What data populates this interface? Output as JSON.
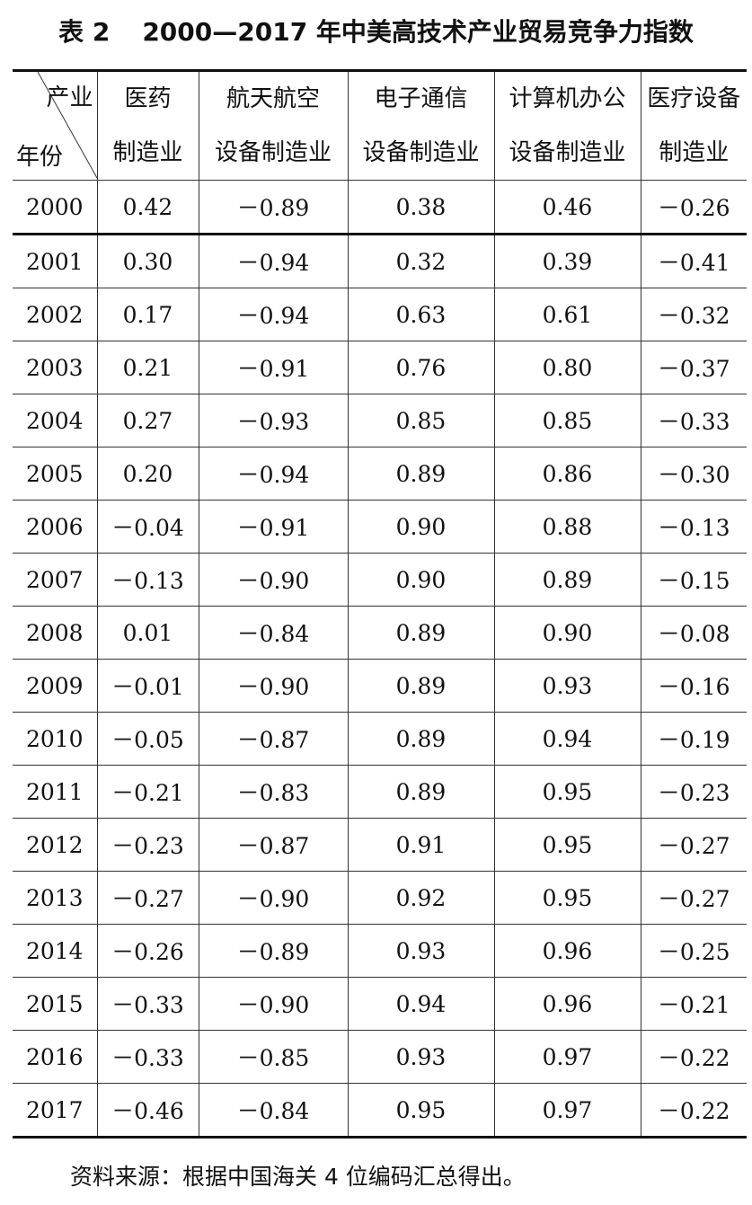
{
  "title": {
    "label": "表 2",
    "text": "2000—2017 年中美高技术产业贸易竞争力指数"
  },
  "table": {
    "corner": {
      "top": "产业",
      "bottom": "年份"
    },
    "columns": [
      [
        "医药",
        "制造业"
      ],
      [
        "航天航空",
        "设备制造业"
      ],
      [
        "电子通信",
        "设备制造业"
      ],
      [
        "计算机办公",
        "设备制造业"
      ],
      [
        "医疗设备",
        "制造业"
      ]
    ],
    "rows": [
      [
        "2000",
        "0.42",
        "－0.89",
        "0.38",
        "0.46",
        "－0.26"
      ],
      [
        "2001",
        "0.30",
        "－0.94",
        "0.32",
        "0.39",
        "－0.41"
      ],
      [
        "2002",
        "0.17",
        "－0.94",
        "0.63",
        "0.61",
        "－0.32"
      ],
      [
        "2003",
        "0.21",
        "－0.91",
        "0.76",
        "0.80",
        "－0.37"
      ],
      [
        "2004",
        "0.27",
        "－0.93",
        "0.85",
        "0.85",
        "－0.33"
      ],
      [
        "2005",
        "0.20",
        "－0.94",
        "0.89",
        "0.86",
        "－0.30"
      ],
      [
        "2006",
        "－0.04",
        "－0.91",
        "0.90",
        "0.88",
        "－0.13"
      ],
      [
        "2007",
        "－0.13",
        "－0.90",
        "0.90",
        "0.89",
        "－0.15"
      ],
      [
        "2008",
        "0.01",
        "－0.84",
        "0.89",
        "0.90",
        "－0.08"
      ],
      [
        "2009",
        "－0.01",
        "－0.90",
        "0.89",
        "0.93",
        "－0.16"
      ],
      [
        "2010",
        "－0.05",
        "－0.87",
        "0.89",
        "0.94",
        "－0.19"
      ],
      [
        "2011",
        "－0.21",
        "－0.83",
        "0.89",
        "0.95",
        "－0.23"
      ],
      [
        "2012",
        "－0.23",
        "－0.87",
        "0.91",
        "0.95",
        "－0.27"
      ],
      [
        "2013",
        "－0.27",
        "－0.90",
        "0.92",
        "0.95",
        "－0.27"
      ],
      [
        "2014",
        "－0.26",
        "－0.89",
        "0.93",
        "0.96",
        "－0.25"
      ],
      [
        "2015",
        "－0.33",
        "－0.90",
        "0.94",
        "0.96",
        "－0.21"
      ],
      [
        "2016",
        "－0.33",
        "－0.85",
        "0.93",
        "0.97",
        "－0.22"
      ],
      [
        "2017",
        "－0.46",
        "－0.84",
        "0.95",
        "0.97",
        "－0.22"
      ]
    ]
  },
  "source": "资料来源：根据中国海关 4 位编码汇总得出。"
}
